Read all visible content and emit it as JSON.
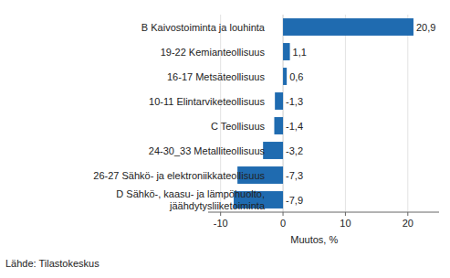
{
  "chart_data": {
    "type": "bar",
    "orientation": "horizontal",
    "categories": [
      "B Kaivostoiminta ja louhinta",
      "19-22 Kemianteollisuus",
      "16-17 Metsäteollisuus",
      "10-11 Elintarviketeollisuus",
      "C Teollisuus",
      "24-30_33 Metalliteollisuus",
      "26-27 Sähkö- ja elektroniikkateollisuus",
      "D Sähkö-, kaasu- ja lämpöhuolto,\njäähdytysliiketoiminta"
    ],
    "values": [
      20.9,
      1.1,
      0.6,
      -1.3,
      -1.4,
      -3.2,
      -7.3,
      -7.9
    ],
    "value_labels": [
      "20,9",
      "1,1",
      "0,6",
      "-1,3",
      "-1,4",
      "-3,2",
      "-7,3",
      "-7,9"
    ],
    "data_labels": true,
    "color": "#1f6bb0",
    "xlim": [
      -12,
      25
    ],
    "xticks": [
      -10,
      0,
      10,
      20
    ],
    "grid": true,
    "x_label": "Muutos, %",
    "source": "Lähde: Tilastokeskus"
  }
}
